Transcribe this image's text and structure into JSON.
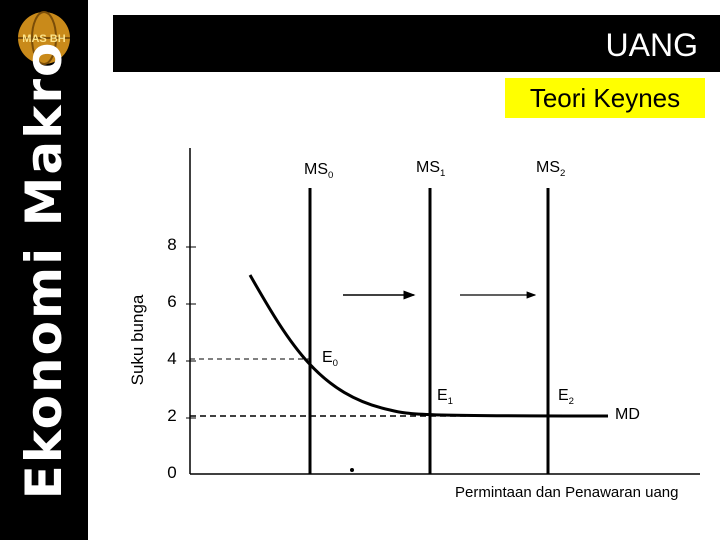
{
  "sidebar": {
    "title": "Ekonomi Makro",
    "logo_text": "MAS BH"
  },
  "header": {
    "title": "UANG",
    "subtitle": "Teori Keynes"
  },
  "diagram": {
    "y_axis_label": "Suku bunga",
    "x_axis_label": "Permintaan dan Penawaran uang",
    "yticks": [
      0,
      2,
      4,
      6,
      8
    ],
    "supply_lines": [
      {
        "name": "MS",
        "sub": "0"
      },
      {
        "name": "MS",
        "sub": "1"
      },
      {
        "name": "MS",
        "sub": "2"
      }
    ],
    "equilibria": [
      {
        "name": "E",
        "sub": "0"
      },
      {
        "name": "E",
        "sub": "1"
      },
      {
        "name": "E",
        "sub": "2"
      }
    ],
    "demand_label": "MD"
  }
}
